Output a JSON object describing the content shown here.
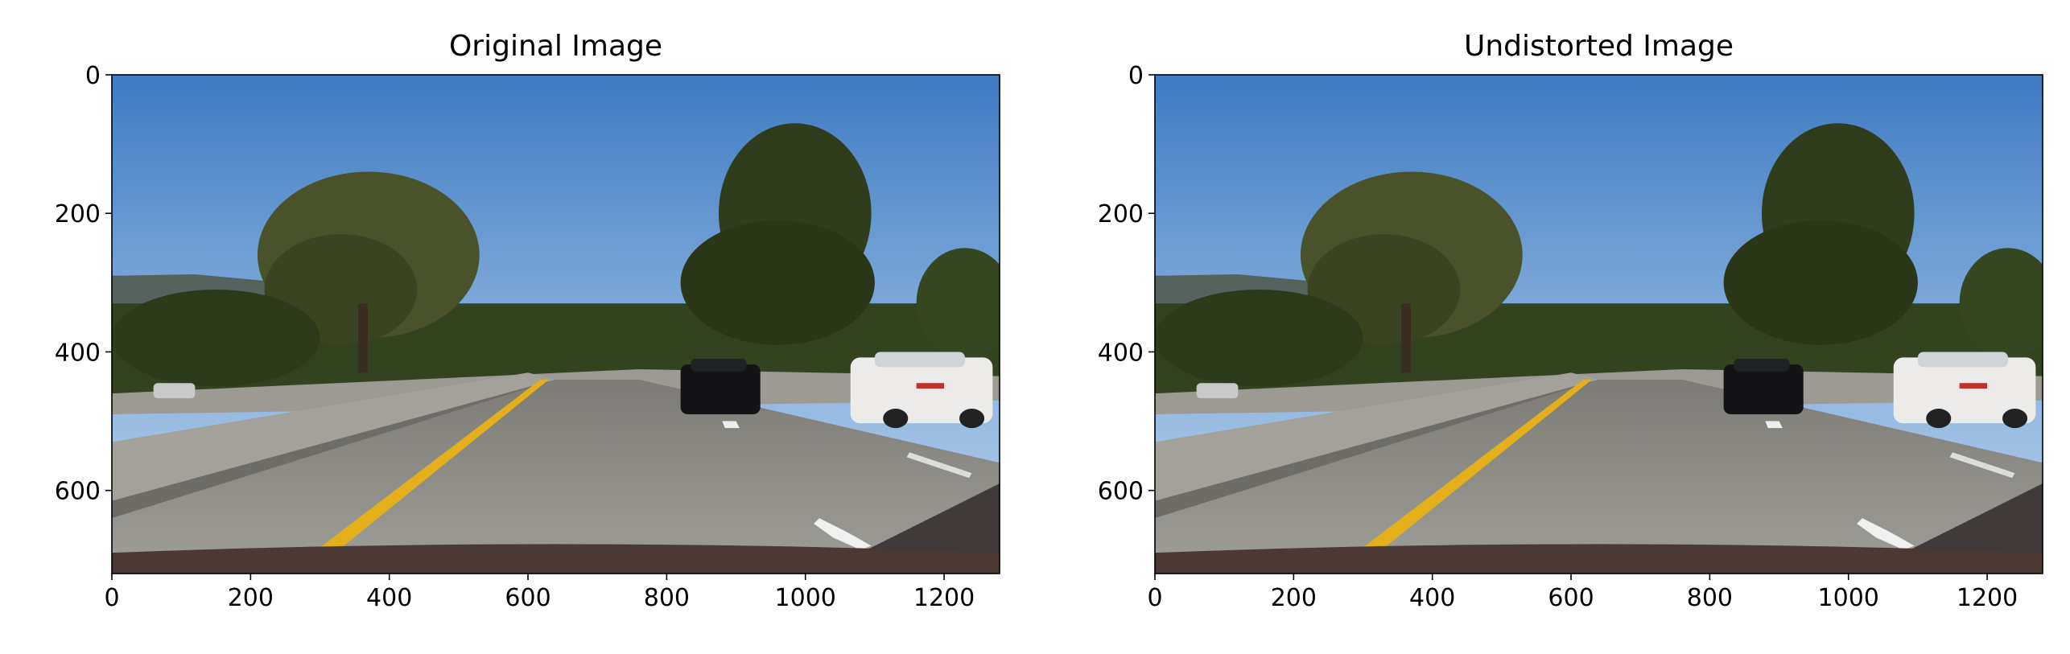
{
  "chart_data": [
    {
      "type": "image",
      "title": "Original Image",
      "xlim": [
        0,
        1280
      ],
      "ylim": [
        720,
        0
      ],
      "xticks": [
        0,
        200,
        400,
        600,
        800,
        1000,
        1200
      ],
      "yticks": [
        0,
        200,
        400,
        600
      ]
    },
    {
      "type": "image",
      "title": "Undistorted Image",
      "xlim": [
        0,
        1280
      ],
      "ylim": [
        720,
        0
      ],
      "xticks": [
        0,
        200,
        400,
        600,
        800,
        1000,
        1200
      ],
      "yticks": [
        0,
        200,
        400,
        600
      ]
    }
  ]
}
